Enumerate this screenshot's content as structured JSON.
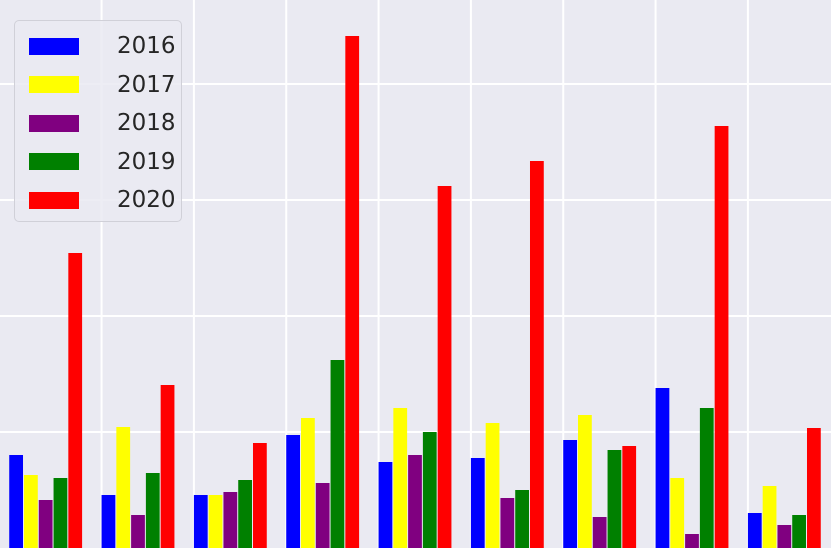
{
  "chart_data": {
    "type": "bar",
    "categories": [
      "",
      "",
      "",
      "",
      "",
      "",
      "",
      "",
      ""
    ],
    "series": [
      {
        "name": "2016",
        "color": "#0000ff",
        "values": [
          93,
          53,
          53,
          113,
          86,
          90,
          108,
          160,
          35
        ]
      },
      {
        "name": "2017",
        "color": "#ffff00",
        "values": [
          73,
          121,
          53,
          130,
          140,
          125,
          133,
          70,
          62
        ]
      },
      {
        "name": "2018",
        "color": "#800080",
        "values": [
          48,
          33,
          56,
          65,
          93,
          50,
          31,
          14,
          23
        ]
      },
      {
        "name": "2019",
        "color": "#008000",
        "values": [
          70,
          75,
          68,
          188,
          116,
          58,
          98,
          140,
          33
        ]
      },
      {
        "name": "2020",
        "color": "#ff0000",
        "values": [
          295,
          163,
          105,
          512,
          362,
          387,
          102,
          422,
          120
        ]
      }
    ],
    "ylim": [
      0,
      548
    ],
    "xlim": [
      -0.5,
      8.5
    ],
    "ygrid": [
      116,
      232,
      348,
      464
    ],
    "xgrid": [
      0.6,
      1.6,
      2.6,
      3.6,
      4.6,
      5.6,
      6.6,
      7.6,
      8.6
    ],
    "grid": true,
    "legend_position": "top-left",
    "title": "",
    "xlabel": "",
    "ylabel": ""
  }
}
